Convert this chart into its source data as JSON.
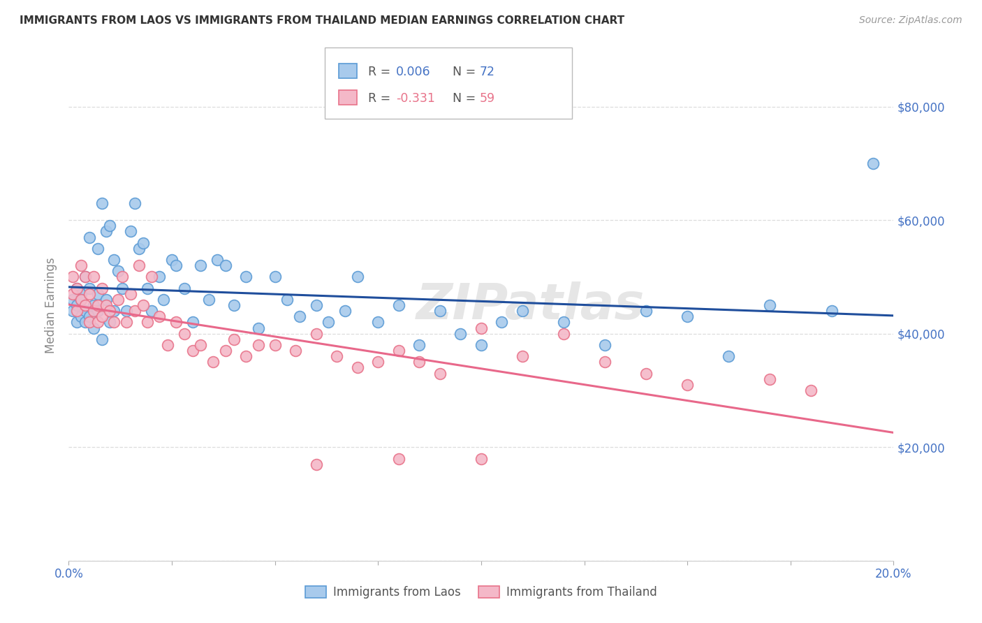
{
  "title": "IMMIGRANTS FROM LAOS VS IMMIGRANTS FROM THAILAND MEDIAN EARNINGS CORRELATION CHART",
  "source": "Source: ZipAtlas.com",
  "ylabel": "Median Earnings",
  "xlim": [
    0.0,
    0.2
  ],
  "ylim": [
    0,
    90000
  ],
  "yticks": [
    0,
    20000,
    40000,
    60000,
    80000
  ],
  "ytick_labels_right": [
    "",
    "$20,000",
    "$40,000",
    "$60,000",
    "$80,000"
  ],
  "xtick_positions": [
    0.0,
    0.025,
    0.05,
    0.075,
    0.1,
    0.125,
    0.15,
    0.175,
    0.2
  ],
  "xtick_labels": [
    "0.0%",
    "",
    "",
    "",
    "",
    "",
    "",
    "",
    "20.0%"
  ],
  "laos_color": "#A8CAEC",
  "laos_edge_color": "#5B9BD5",
  "thailand_color": "#F4B8C8",
  "thailand_edge_color": "#E8738A",
  "trend_laos_color": "#1F4E9C",
  "trend_thailand_color": "#E8688A",
  "R_laos": 0.006,
  "N_laos": 72,
  "R_thailand": -0.331,
  "N_thailand": 59,
  "legend_label_laos": "Immigrants from Laos",
  "legend_label_thailand": "Immigrants from Thailand",
  "watermark": "ZIPatlas",
  "background_color": "#FFFFFF",
  "grid_color": "#DDDDDD",
  "axis_color": "#4472C4",
  "title_color": "#333333",
  "laos_x": [
    0.001,
    0.001,
    0.002,
    0.002,
    0.002,
    0.003,
    0.003,
    0.003,
    0.004,
    0.004,
    0.004,
    0.005,
    0.005,
    0.005,
    0.006,
    0.006,
    0.007,
    0.007,
    0.007,
    0.008,
    0.008,
    0.009,
    0.009,
    0.01,
    0.01,
    0.011,
    0.011,
    0.012,
    0.013,
    0.014,
    0.015,
    0.016,
    0.017,
    0.018,
    0.019,
    0.02,
    0.022,
    0.023,
    0.025,
    0.026,
    0.028,
    0.03,
    0.032,
    0.034,
    0.036,
    0.038,
    0.04,
    0.043,
    0.046,
    0.05,
    0.053,
    0.056,
    0.06,
    0.063,
    0.067,
    0.07,
    0.075,
    0.08,
    0.085,
    0.09,
    0.095,
    0.1,
    0.105,
    0.11,
    0.12,
    0.13,
    0.14,
    0.15,
    0.16,
    0.17,
    0.185,
    0.195
  ],
  "laos_y": [
    44000,
    46000,
    42000,
    48000,
    45000,
    47000,
    43000,
    46000,
    50000,
    44000,
    42000,
    57000,
    48000,
    43000,
    45000,
    41000,
    55000,
    47000,
    44000,
    63000,
    39000,
    58000,
    46000,
    59000,
    42000,
    53000,
    44000,
    51000,
    48000,
    44000,
    58000,
    63000,
    55000,
    56000,
    48000,
    44000,
    50000,
    46000,
    53000,
    52000,
    48000,
    42000,
    52000,
    46000,
    53000,
    52000,
    45000,
    50000,
    41000,
    50000,
    46000,
    43000,
    45000,
    42000,
    44000,
    50000,
    42000,
    45000,
    38000,
    44000,
    40000,
    38000,
    42000,
    44000,
    42000,
    38000,
    44000,
    43000,
    36000,
    45000,
    44000,
    70000
  ],
  "thailand_x": [
    0.001,
    0.001,
    0.002,
    0.002,
    0.003,
    0.003,
    0.004,
    0.004,
    0.005,
    0.005,
    0.006,
    0.006,
    0.007,
    0.007,
    0.008,
    0.008,
    0.009,
    0.01,
    0.011,
    0.012,
    0.013,
    0.014,
    0.015,
    0.016,
    0.017,
    0.018,
    0.019,
    0.02,
    0.022,
    0.024,
    0.026,
    0.028,
    0.03,
    0.032,
    0.035,
    0.038,
    0.04,
    0.043,
    0.046,
    0.05,
    0.055,
    0.06,
    0.065,
    0.07,
    0.075,
    0.08,
    0.085,
    0.09,
    0.1,
    0.11,
    0.12,
    0.13,
    0.14,
    0.15,
    0.17,
    0.18,
    0.06,
    0.08,
    0.1
  ],
  "thailand_y": [
    50000,
    47000,
    48000,
    44000,
    52000,
    46000,
    50000,
    45000,
    47000,
    42000,
    50000,
    44000,
    45000,
    42000,
    48000,
    43000,
    45000,
    44000,
    42000,
    46000,
    50000,
    42000,
    47000,
    44000,
    52000,
    45000,
    42000,
    50000,
    43000,
    38000,
    42000,
    40000,
    37000,
    38000,
    35000,
    37000,
    39000,
    36000,
    38000,
    38000,
    37000,
    40000,
    36000,
    34000,
    35000,
    37000,
    35000,
    33000,
    41000,
    36000,
    40000,
    35000,
    33000,
    31000,
    32000,
    30000,
    17000,
    18000,
    18000
  ]
}
